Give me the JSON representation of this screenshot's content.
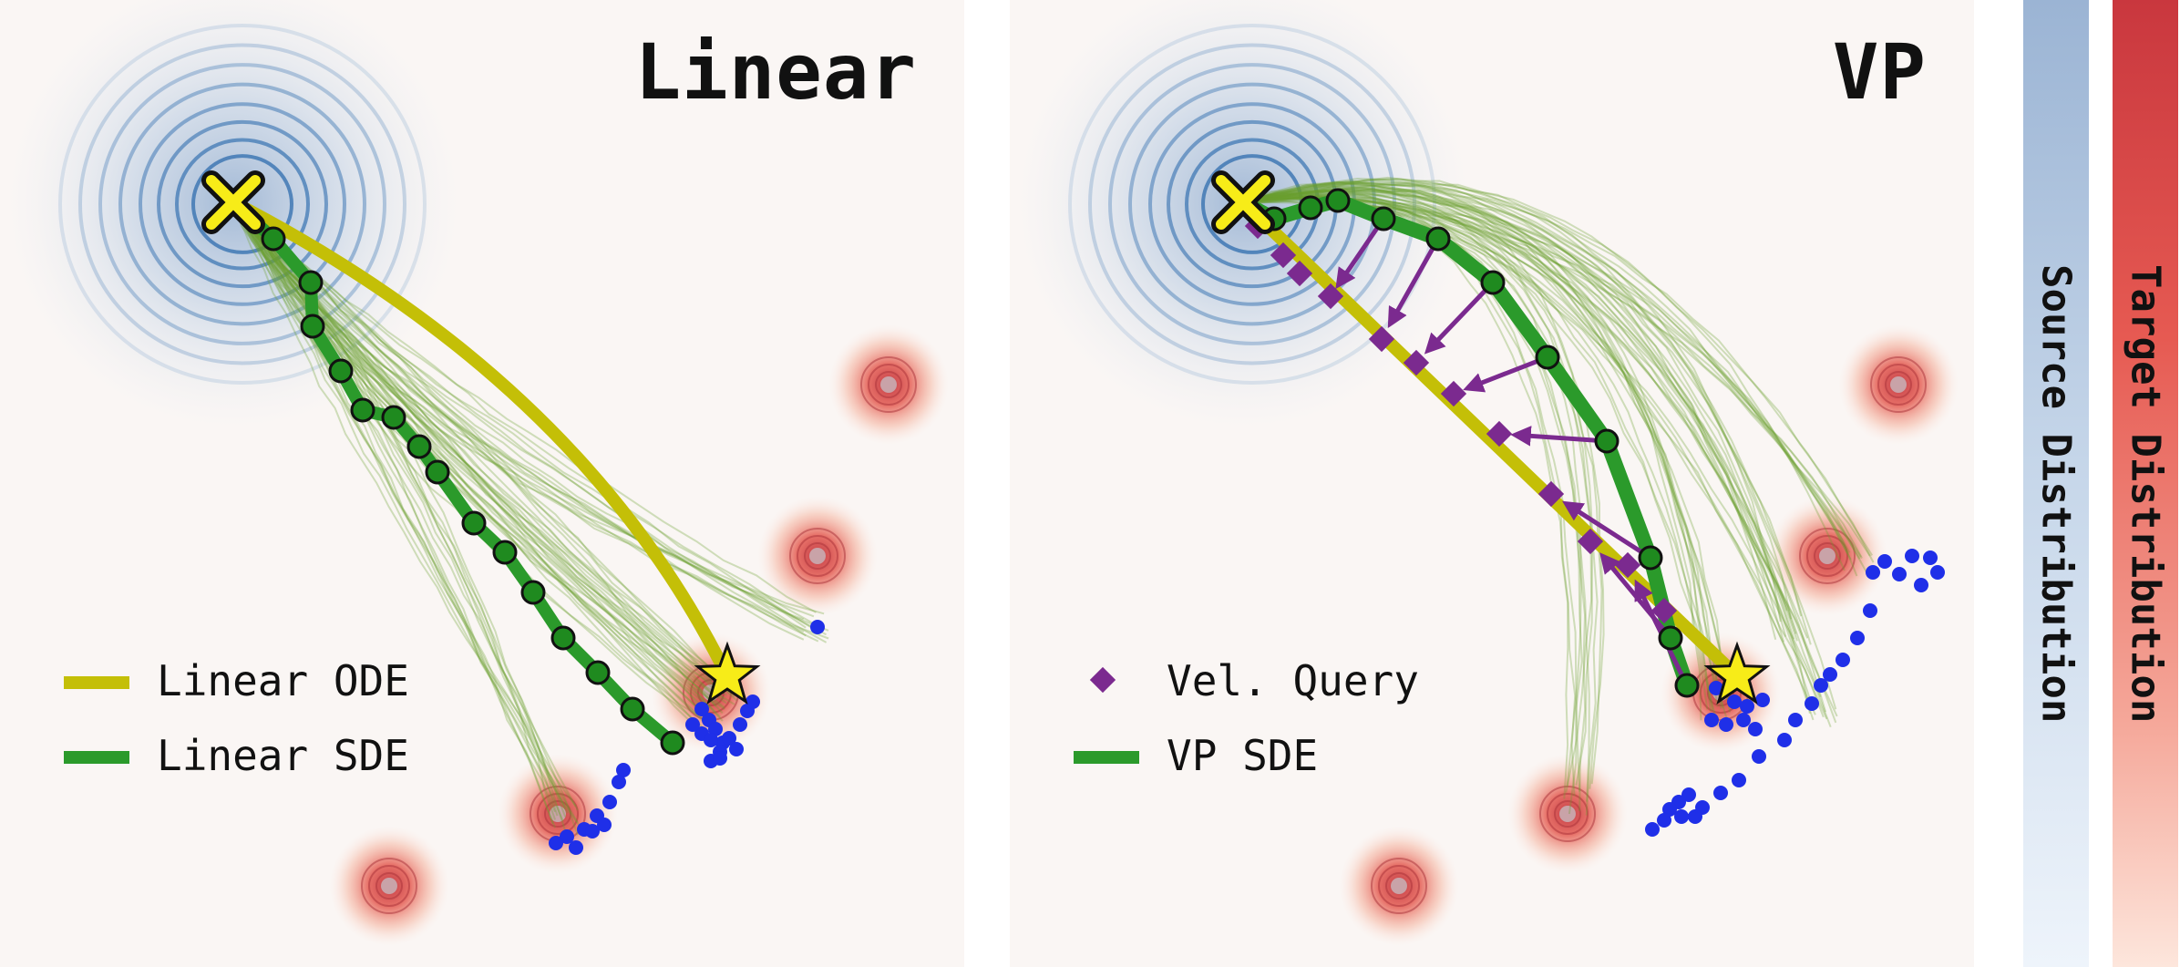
{
  "panels": [
    {
      "title": "Linear",
      "legend": [
        {
          "label": "Linear ODE",
          "color": "#c4bf07",
          "marker": "line"
        },
        {
          "label": "Linear SDE",
          "color": "#2b9a2b",
          "marker": "line"
        }
      ]
    },
    {
      "title": "VP",
      "legend": [
        {
          "label": "Vel. Query",
          "color": "#7b2a8f",
          "marker": "diamond"
        },
        {
          "label": "VP SDE",
          "color": "#2b9a2b",
          "marker": "line"
        }
      ]
    }
  ],
  "colorbars": {
    "source_label": "Source Distribution",
    "target_label": "Target Distribution"
  },
  "colors": {
    "source": "#4a7fb5",
    "target": "#d84a45",
    "ode": "#c4bf07",
    "sde": "#2b9a2b",
    "samples": "#1f2fe8",
    "query": "#7b2a8f",
    "marker_start": "#f7ec18"
  }
}
